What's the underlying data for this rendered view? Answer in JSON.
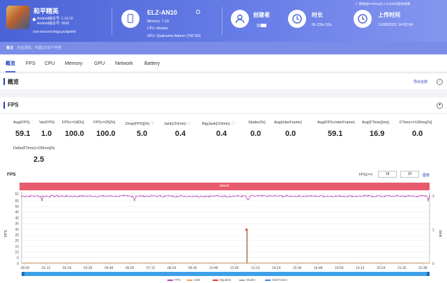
{
  "header": {
    "app": {
      "name": "和平精英",
      "android_version": "Android版本号: 1.14.10",
      "android_build": "Android版本号: 9600",
      "package": "com.tencent.tmgp.pubgmhd",
      "icon": "game-app-icon"
    },
    "device": {
      "name": "ELZ-AN10",
      "memory": "Memory: 7.1G",
      "cpu": "CPU: lahaina",
      "gpu": "GPU: Qualcomm Adreno (TM) 660",
      "icon": "phone-icon"
    },
    "creator": {
      "label": "创建者",
      "icon": "user-icon"
    },
    "duration": {
      "label": "时长",
      "value": "0h 23m 53s",
      "icon": "clock-icon"
    },
    "upload": {
      "label": "上传时间",
      "value": "11/08/2021 14:20:04",
      "icon": "clock-icon"
    },
    "perfdog_note": "ⓘ 数据由PerfDog(5.1.210300)版本收集"
  },
  "note_bar": {
    "key": "备注",
    "value": "点击添加，不超过200个字符"
  },
  "tabs": [
    {
      "label": "概览",
      "active": true
    },
    {
      "label": "FPS"
    },
    {
      "label": "CPU"
    },
    {
      "label": "Memory"
    },
    {
      "label": "GPU"
    },
    {
      "label": "Network"
    },
    {
      "label": "Battery"
    }
  ],
  "overview": {
    "title": "概览",
    "export_label": "导出全部"
  },
  "fps_section": {
    "title": "FPS",
    "metrics": [
      {
        "label": "Avg(FPS)",
        "value": "59.1"
      },
      {
        "label": "Var(FPS)",
        "value": "1.0"
      },
      {
        "label": "FPS>=18[%]",
        "value": "100.0"
      },
      {
        "label": "FPS>=25[%]",
        "value": "100.0"
      },
      {
        "label": "Drop(FPS)[/h]",
        "value": "5.0"
      },
      {
        "label": "Jank(/10min)",
        "value": "0.4"
      },
      {
        "label": "BigJank(/10min)",
        "value": "0.4"
      },
      {
        "label": "Stutter(%)",
        "value": "0.0"
      },
      {
        "label": "Avg(InterFrame)",
        "value": "0.0"
      },
      {
        "label": "Avg(FPS+InterFrame)",
        "value": "59.1"
      },
      {
        "label": "Avg(FTime)[ms]",
        "value": "16.9"
      },
      {
        "label": "FTime>=100ms[%]",
        "value": "0.0"
      },
      {
        "label": "Delta(FTime)>100ms[/h]",
        "value": "2.5"
      }
    ],
    "chart_title": "FPS",
    "fps_filter_label": "FPS(>=)",
    "fps_filter_values": [
      "18",
      "25"
    ],
    "confirm_label": "图表",
    "label_band": "label1"
  },
  "chart_data": {
    "type": "line",
    "x_ticks": [
      "00:00",
      "01:12",
      "02:24",
      "03:36",
      "04:48",
      "06:00",
      "07:12",
      "08:24",
      "09:36",
      "10:48",
      "12:00",
      "13:12",
      "14:24",
      "15:36",
      "16:48",
      "18:00",
      "19:12",
      "20:24",
      "21:36",
      "22:48"
    ],
    "x_range": [
      0,
      1433
    ],
    "y_left_ticks": [
      0,
      5,
      10,
      15,
      20,
      25,
      30,
      35,
      40,
      45,
      50,
      55,
      61
    ],
    "y_left_range": [
      0,
      63
    ],
    "y_left_label": "FPS",
    "y_right_ticks": [
      0,
      1,
      2
    ],
    "y_right_range": [
      0,
      2
    ],
    "y_right_label": "Jank",
    "series": [
      {
        "name": "FPS",
        "color": "#b646b8",
        "baseline": 59.1,
        "dips": [
          [
            70,
            55
          ],
          [
            395,
            55
          ],
          [
            795,
            56
          ],
          [
            1430,
            55
          ]
        ]
      },
      {
        "name": "Jank",
        "color": "#f0a050",
        "events": [
          [
            790,
            1
          ]
        ]
      },
      {
        "name": "BigJank",
        "color": "#e03a3a",
        "events": [
          [
            790,
            1
          ]
        ]
      },
      {
        "name": "Stutter",
        "color": "#9aa0a8",
        "events": []
      },
      {
        "name": "InterFrame",
        "color": "#3c82d9",
        "events": []
      }
    ]
  }
}
